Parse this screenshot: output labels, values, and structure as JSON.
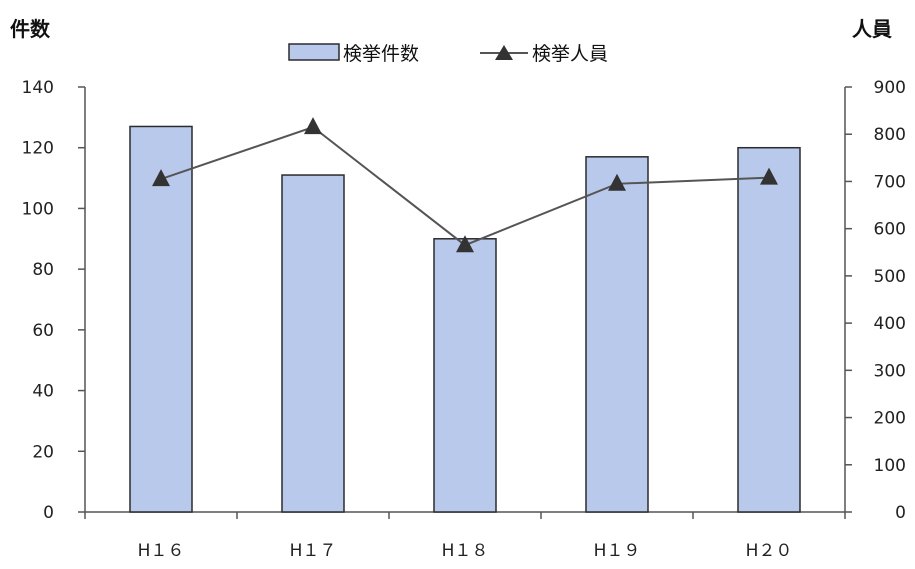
{
  "chart_data": {
    "type": "bar",
    "categories": [
      "H16",
      "H17",
      "H18",
      "H19",
      "H20"
    ],
    "category_labels": [
      "H１６",
      "H１７",
      "H１８",
      "H１９",
      "H２０"
    ],
    "left_axis_label": "件数",
    "right_axis_label": "人員",
    "left_ylim": [
      0,
      140
    ],
    "left_ticks": [
      0,
      20,
      40,
      60,
      80,
      100,
      120,
      140
    ],
    "right_ylim": [
      0,
      900
    ],
    "right_ticks": [
      0,
      100,
      200,
      300,
      400,
      500,
      600,
      700,
      800,
      900
    ],
    "series": [
      {
        "name": "検挙件数",
        "type": "bar",
        "axis": "left",
        "values": [
          127,
          111,
          90,
          117,
          120
        ]
      },
      {
        "name": "検挙人員",
        "type": "line",
        "axis": "right",
        "marker": "triangle",
        "values": [
          705,
          815,
          565,
          695,
          708
        ]
      }
    ],
    "legend_position": "top-center",
    "grid": false,
    "colors": {
      "bar_fill": "#b9c9ec",
      "bar_stroke": "#2b2b2b",
      "line": "#555555",
      "marker": "#333333",
      "axis": "#555555"
    }
  }
}
